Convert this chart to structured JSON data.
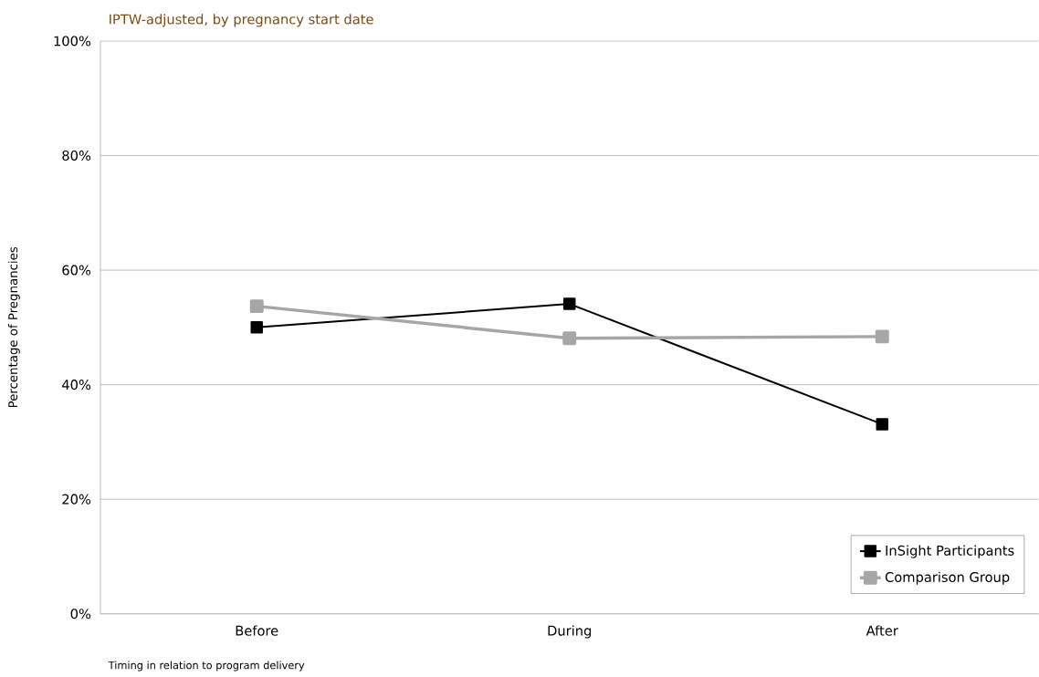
{
  "chart_data": {
    "type": "line",
    "subtitle": "IPTW-adjusted, by pregnancy start date",
    "xlabel": "Timing in relation to program delivery",
    "ylabel": "Percentage of Pregnancies",
    "categories": [
      "Before",
      "During",
      "After"
    ],
    "series": [
      {
        "name": "InSight Participants",
        "color": "#000000",
        "values": [
          50.0,
          54.1,
          33.1
        ]
      },
      {
        "name": "Comparison Group",
        "color": "#a6a6a6",
        "values": [
          53.7,
          48.1,
          48.4
        ]
      }
    ],
    "ylim": [
      0,
      100
    ],
    "yticks": [
      {
        "value": 0,
        "label": "0%"
      },
      {
        "value": 20,
        "label": "20%"
      },
      {
        "value": 40,
        "label": "40%"
      },
      {
        "value": 60,
        "label": "60%"
      },
      {
        "value": 80,
        "label": "80%"
      },
      {
        "value": 100,
        "label": "100%"
      }
    ],
    "grid": "y",
    "legend": "bottom right",
    "marker": "square",
    "line_style": "solid"
  }
}
